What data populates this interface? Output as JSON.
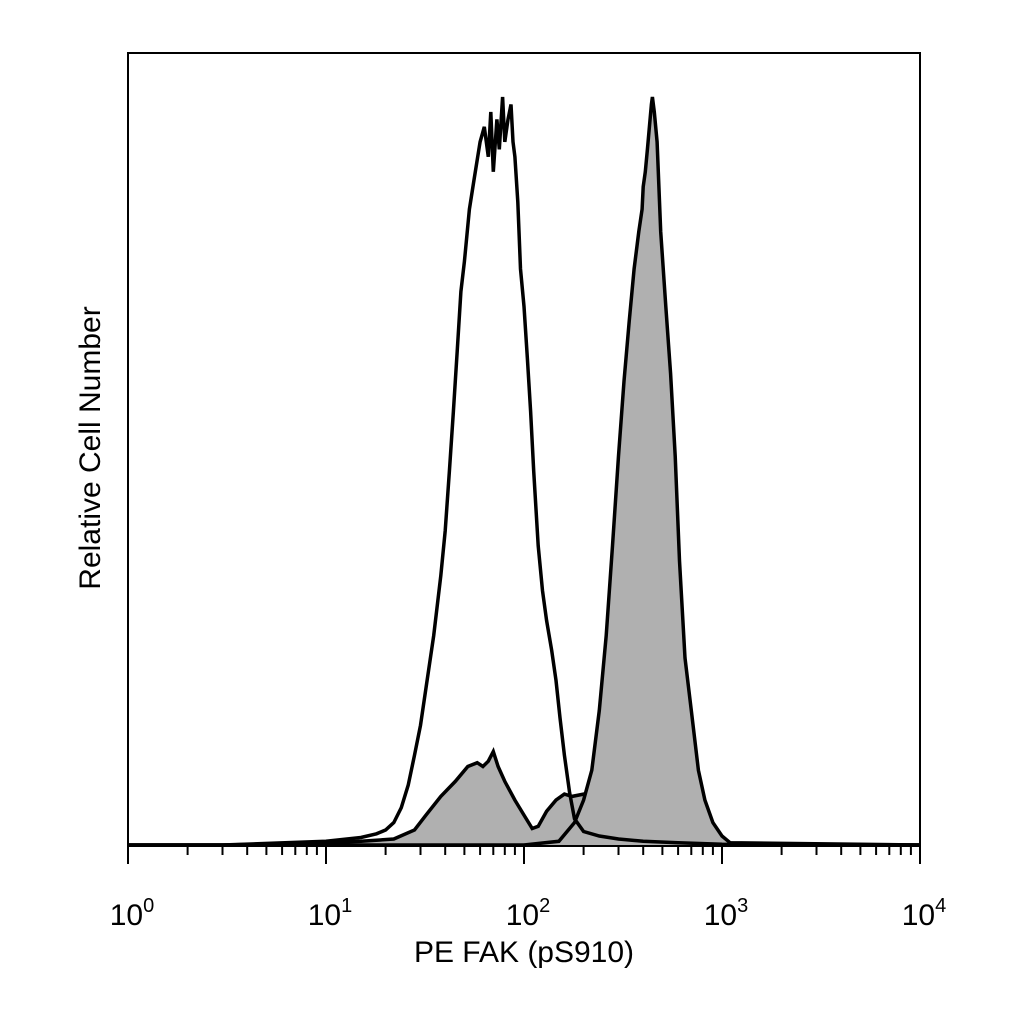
{
  "chart_data": {
    "type": "area",
    "title": "",
    "xlabel": "PE FAK (pS910)",
    "ylabel": "Relative Cell Number",
    "x_scale": "log10",
    "xlim": [
      1,
      10000
    ],
    "ylim": [
      0,
      100
    ],
    "y_ticks_shown": false,
    "grid": false,
    "legend": "none",
    "x_tick_labels": [
      {
        "base": "10",
        "exp": "0",
        "value": 1
      },
      {
        "base": "10",
        "exp": "1",
        "value": 10
      },
      {
        "base": "10",
        "exp": "2",
        "value": 100
      },
      {
        "base": "10",
        "exp": "3",
        "value": 1000
      },
      {
        "base": "10",
        "exp": "4",
        "value": 10000
      }
    ],
    "series": [
      {
        "style": "filled",
        "fill_color": "#b0b0b0",
        "line_color": "#000000",
        "points": [
          [
            1,
            0
          ],
          [
            3,
            0
          ],
          [
            8,
            0.2
          ],
          [
            15,
            0.5
          ],
          [
            22,
            0.8
          ],
          [
            28,
            2
          ],
          [
            32,
            4
          ],
          [
            38,
            6.5
          ],
          [
            45,
            8.5
          ],
          [
            52,
            10.5
          ],
          [
            58,
            11
          ],
          [
            62,
            10.5
          ],
          [
            66,
            11.2
          ],
          [
            70,
            12.5
          ],
          [
            74,
            10.5
          ],
          [
            80,
            8.5
          ],
          [
            90,
            6
          ],
          [
            100,
            4
          ],
          [
            110,
            2.2
          ],
          [
            118,
            2.5
          ],
          [
            130,
            4.5
          ],
          [
            145,
            6
          ],
          [
            160,
            6.8
          ],
          [
            175,
            6.5
          ],
          [
            200,
            6.8
          ],
          [
            220,
            7
          ],
          [
            250,
            5
          ],
          [
            280,
            3.5
          ],
          [
            310,
            2.5
          ],
          [
            340,
            3.5
          ],
          [
            370,
            4.5
          ],
          [
            390,
            5.5
          ],
          [
            405,
            6.5
          ],
          [
            420,
            6
          ],
          [
            450,
            4
          ],
          [
            500,
            2.5
          ],
          [
            600,
            1.2
          ],
          [
            750,
            0.6
          ],
          [
            1000,
            0.3
          ],
          [
            1500,
            0.1
          ],
          [
            10000,
            0
          ]
        ]
      },
      {
        "style": "filled",
        "fill_color": "#b0b0b0",
        "line_color": "#000000",
        "points": [
          [
            1,
            0
          ],
          [
            100,
            0
          ],
          [
            150,
            0.5
          ],
          [
            180,
            3
          ],
          [
            200,
            6
          ],
          [
            220,
            10
          ],
          [
            240,
            18
          ],
          [
            260,
            28
          ],
          [
            280,
            40
          ],
          [
            300,
            52
          ],
          [
            320,
            62
          ],
          [
            340,
            70
          ],
          [
            360,
            77
          ],
          [
            380,
            82
          ],
          [
            395,
            85
          ],
          [
            400,
            88
          ],
          [
            410,
            90
          ],
          [
            420,
            93
          ],
          [
            430,
            96
          ],
          [
            440,
            99
          ],
          [
            445,
            100
          ],
          [
            455,
            98
          ],
          [
            470,
            94
          ],
          [
            490,
            82
          ],
          [
            520,
            72
          ],
          [
            550,
            63
          ],
          [
            580,
            52
          ],
          [
            610,
            38
          ],
          [
            650,
            25
          ],
          [
            700,
            18
          ],
          [
            760,
            10
          ],
          [
            820,
            6
          ],
          [
            900,
            3
          ],
          [
            1000,
            1.2
          ],
          [
            1100,
            0.3
          ],
          [
            10000,
            0
          ]
        ]
      },
      {
        "style": "outline",
        "fill_color": "none",
        "line_color": "#000000",
        "points": [
          [
            1,
            0
          ],
          [
            3,
            0
          ],
          [
            10,
            0.5
          ],
          [
            15,
            1
          ],
          [
            18,
            1.5
          ],
          [
            20,
            2
          ],
          [
            22,
            3
          ],
          [
            24,
            5
          ],
          [
            26,
            8
          ],
          [
            28,
            12
          ],
          [
            30,
            16
          ],
          [
            32,
            21
          ],
          [
            35,
            28
          ],
          [
            38,
            36
          ],
          [
            40,
            42
          ],
          [
            42,
            50
          ],
          [
            44,
            58
          ],
          [
            46,
            66
          ],
          [
            48,
            74
          ],
          [
            50,
            78
          ],
          [
            53,
            85
          ],
          [
            56,
            89
          ],
          [
            60,
            94
          ],
          [
            63,
            96
          ],
          [
            66,
            92
          ],
          [
            68,
            98
          ],
          [
            70,
            90
          ],
          [
            73,
            97
          ],
          [
            75,
            93
          ],
          [
            78,
            100
          ],
          [
            80,
            94
          ],
          [
            83,
            97
          ],
          [
            86,
            99
          ],
          [
            88,
            94
          ],
          [
            90,
            92
          ],
          [
            93,
            86
          ],
          [
            96,
            77
          ],
          [
            100,
            72
          ],
          [
            104,
            65
          ],
          [
            108,
            58
          ],
          [
            112,
            50
          ],
          [
            118,
            40
          ],
          [
            124,
            34
          ],
          [
            130,
            30
          ],
          [
            138,
            26
          ],
          [
            145,
            22
          ],
          [
            152,
            17
          ],
          [
            160,
            12
          ],
          [
            170,
            7
          ],
          [
            180,
            3.5
          ],
          [
            200,
            1.8
          ],
          [
            240,
            1.2
          ],
          [
            300,
            0.8
          ],
          [
            400,
            0.5
          ],
          [
            600,
            0.3
          ],
          [
            1000,
            0.1
          ],
          [
            10000,
            0
          ]
        ]
      }
    ]
  }
}
